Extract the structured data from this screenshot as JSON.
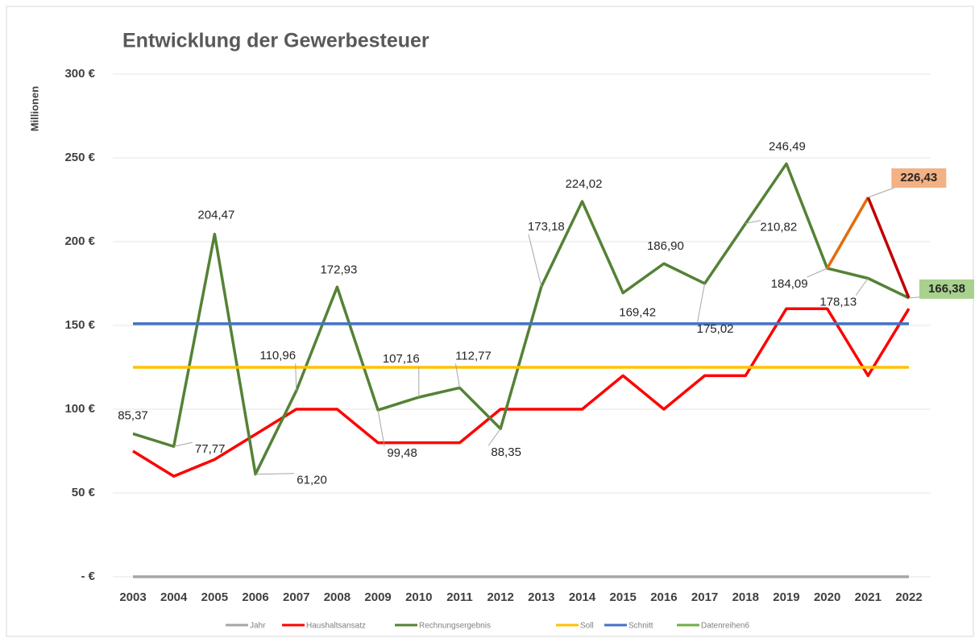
{
  "chart_data": {
    "type": "line",
    "title": "Entwicklung der Gewerbesteuer",
    "y_axis_label": "Millionen",
    "categories": [
      "2003",
      "2004",
      "2005",
      "2006",
      "2007",
      "2008",
      "2009",
      "2010",
      "2011",
      "2012",
      "2013",
      "2014",
      "2015",
      "2016",
      "2017",
      "2018",
      "2019",
      "2020",
      "2021",
      "2022"
    ],
    "ylim": [
      0,
      300
    ],
    "yticks": [
      {
        "value": 0,
        "label": "- €"
      },
      {
        "value": 50,
        "label": "50 €"
      },
      {
        "value": 100,
        "label": "100 €"
      },
      {
        "value": 150,
        "label": "150 €"
      },
      {
        "value": 200,
        "label": "200 €"
      },
      {
        "value": 250,
        "label": "250 €"
      },
      {
        "value": 300,
        "label": "300 €"
      }
    ],
    "grid": true,
    "legend": "bottom",
    "series": [
      {
        "name": "Jahr",
        "color": "#a6a6a6",
        "values": [
          0,
          0,
          0,
          0,
          0,
          0,
          0,
          0,
          0,
          0,
          0,
          0,
          0,
          0,
          0,
          0,
          0,
          0,
          0,
          0
        ]
      },
      {
        "name": "Haushaltsansatz",
        "color": "#ff0000",
        "values": [
          75,
          60,
          70,
          85,
          100,
          100,
          80,
          80,
          80,
          100,
          100,
          100,
          120,
          100,
          120,
          120,
          160,
          160,
          120,
          160
        ]
      },
      {
        "name": "Rechnungsergebnis",
        "color": "#548235",
        "values": [
          85.37,
          77.77,
          204.47,
          61.2,
          110.96,
          172.93,
          99.48,
          107.16,
          112.77,
          88.35,
          173.18,
          224.02,
          169.42,
          186.9,
          175.02,
          210.82,
          246.49,
          184.09,
          178.13,
          166.38
        ],
        "value_labels": [
          "85,37",
          "77,77",
          "204,47",
          "61,20",
          "110,96",
          "172,93",
          "99,48",
          "107,16",
          "112,77",
          "88,35",
          "173,18",
          "224,02",
          "169,42",
          "186,90",
          "175,02",
          "210,82",
          "246,49",
          "184,09",
          "178,13",
          null
        ]
      },
      {
        "name": "Soll",
        "color": "#ffc000",
        "values": [
          125,
          125,
          125,
          125,
          125,
          125,
          125,
          125,
          125,
          125,
          125,
          125,
          125,
          125,
          125,
          125,
          125,
          125,
          125,
          125
        ]
      },
      {
        "name": "Schnitt",
        "color": "#4472c4",
        "values": [
          151,
          151,
          151,
          151,
          151,
          151,
          151,
          151,
          151,
          151,
          151,
          151,
          151,
          151,
          151,
          151,
          151,
          151,
          151,
          151
        ]
      },
      {
        "name": "Datenreihen6",
        "color": "#70ad47",
        "segment_colors": [
          "#e36c0a",
          "#c00000"
        ],
        "values": [
          null,
          null,
          null,
          null,
          null,
          null,
          null,
          null,
          null,
          null,
          null,
          null,
          null,
          null,
          null,
          null,
          null,
          184.09,
          226.43,
          166.38
        ],
        "value_labels": [
          null,
          null,
          null,
          null,
          null,
          null,
          null,
          null,
          null,
          null,
          null,
          null,
          null,
          null,
          null,
          null,
          null,
          null,
          "226,43",
          "166,38"
        ],
        "label_backgrounds": [
          null,
          null,
          null,
          null,
          null,
          null,
          null,
          null,
          null,
          null,
          null,
          null,
          null,
          null,
          null,
          null,
          null,
          null,
          "#f4b183",
          "#a9d18e"
        ]
      }
    ]
  }
}
